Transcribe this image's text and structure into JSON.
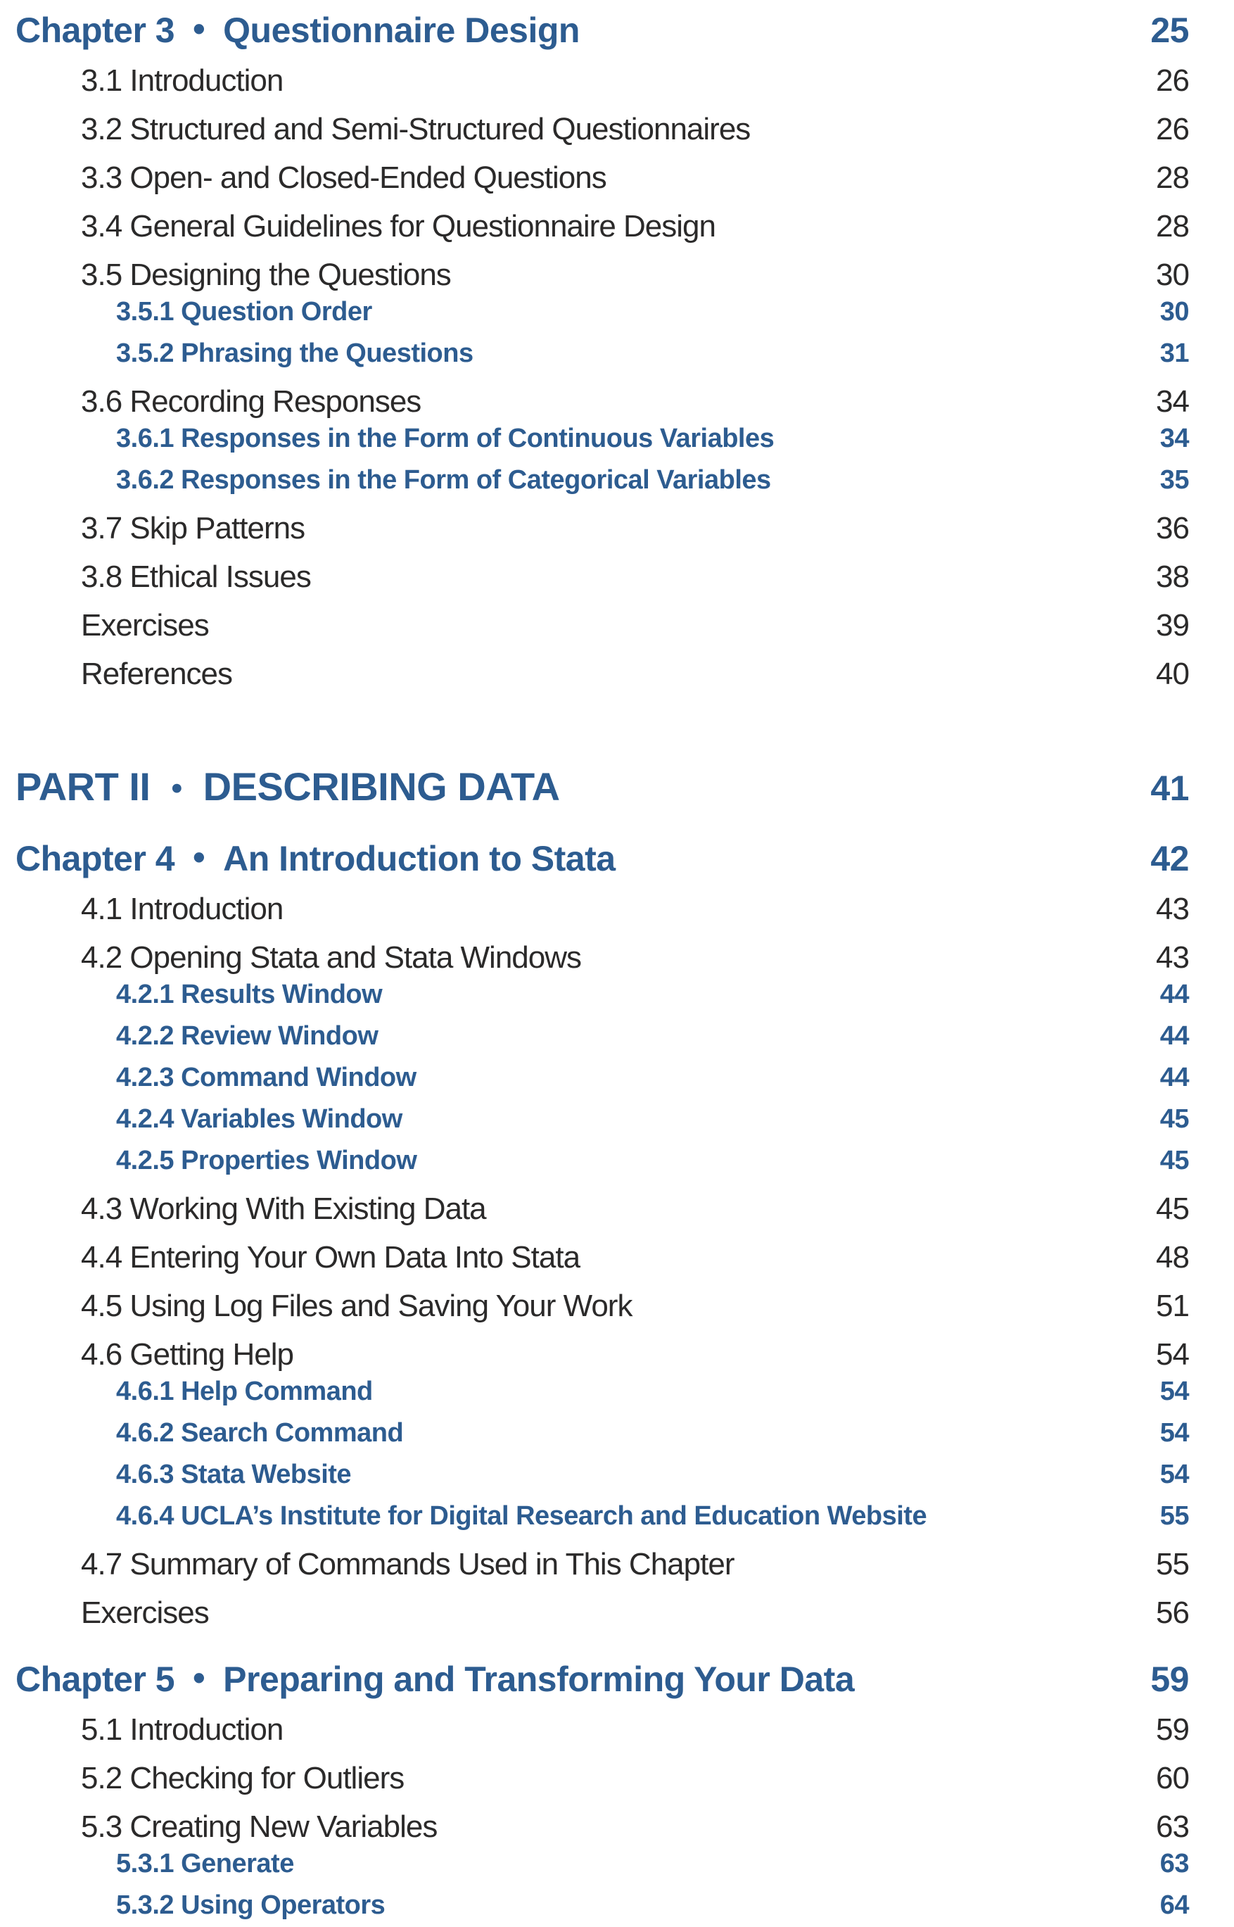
{
  "colors": {
    "accent_blue": "#2d5c90",
    "text_ink": "#2b2a2a",
    "background": "#ffffff"
  },
  "toc": {
    "bullet": "•",
    "entries": [
      {
        "level": "chapter",
        "prefix": "Chapter 3",
        "title": "Questionnaire Design",
        "page": "25"
      },
      {
        "level": "section",
        "title": "3.1 Introduction",
        "page": "26"
      },
      {
        "level": "section",
        "title": "3.2 Structured and Semi-Structured Questionnaires",
        "page": "26"
      },
      {
        "level": "section",
        "title": "3.3 Open- and Closed-Ended Questions",
        "page": "28"
      },
      {
        "level": "section",
        "title": "3.4 General Guidelines for Questionnaire Design",
        "page": "28"
      },
      {
        "level": "section",
        "title": "3.5 Designing the Questions",
        "page": "30"
      },
      {
        "level": "sub",
        "title": "3.5.1 Question Order",
        "page": "30"
      },
      {
        "level": "sub",
        "title": "3.5.2 Phrasing the Questions",
        "page": "31"
      },
      {
        "level": "section",
        "title": "3.6 Recording Responses",
        "page": "34"
      },
      {
        "level": "sub",
        "title": "3.6.1 Responses in the Form of Continuous Variables",
        "page": "34"
      },
      {
        "level": "sub",
        "title": "3.6.2 Responses in the Form of Categorical Variables",
        "page": "35"
      },
      {
        "level": "section",
        "title": "3.7 Skip Patterns",
        "page": "36"
      },
      {
        "level": "section",
        "title": "3.8 Ethical Issues",
        "page": "38"
      },
      {
        "level": "section",
        "title": "Exercises",
        "page": "39"
      },
      {
        "level": "section",
        "title": "References",
        "page": "40"
      },
      {
        "level": "part",
        "prefix": "PART II",
        "title": "DESCRIBING DATA",
        "page": "41"
      },
      {
        "level": "chapter",
        "prefix": "Chapter 4",
        "title": "An Introduction to Stata",
        "page": "42"
      },
      {
        "level": "section",
        "title": "4.1 Introduction",
        "page": "43"
      },
      {
        "level": "section",
        "title": "4.2 Opening Stata and Stata Windows",
        "page": "43"
      },
      {
        "level": "sub",
        "title": "4.2.1 Results Window",
        "page": "44"
      },
      {
        "level": "sub",
        "title": "4.2.2 Review Window",
        "page": "44"
      },
      {
        "level": "sub",
        "title": "4.2.3 Command Window",
        "page": "44"
      },
      {
        "level": "sub",
        "title": "4.2.4 Variables Window",
        "page": "45"
      },
      {
        "level": "sub",
        "title": "4.2.5 Properties Window",
        "page": "45"
      },
      {
        "level": "section",
        "title": "4.3 Working With Existing Data",
        "page": "45"
      },
      {
        "level": "section",
        "title": "4.4 Entering Your Own Data Into Stata",
        "page": "48"
      },
      {
        "level": "section",
        "title": "4.5 Using Log Files and Saving Your Work",
        "page": "51"
      },
      {
        "level": "section",
        "title": "4.6 Getting Help",
        "page": "54"
      },
      {
        "level": "sub",
        "title": "4.6.1 Help Command",
        "page": "54"
      },
      {
        "level": "sub",
        "title": "4.6.2 Search Command",
        "page": "54"
      },
      {
        "level": "sub",
        "title": "4.6.3 Stata Website",
        "page": "54"
      },
      {
        "level": "sub",
        "title": "4.6.4 UCLA’s Institute for Digital Research and Education Website",
        "page": "55"
      },
      {
        "level": "section",
        "title": "4.7 Summary of Commands Used in This Chapter",
        "page": "55"
      },
      {
        "level": "section",
        "title": "Exercises",
        "page": "56"
      },
      {
        "level": "chapter",
        "prefix": "Chapter 5",
        "title": "Preparing and Transforming Your Data",
        "page": "59"
      },
      {
        "level": "section",
        "title": "5.1 Introduction",
        "page": "59"
      },
      {
        "level": "section",
        "title": "5.2 Checking for Outliers",
        "page": "60"
      },
      {
        "level": "section",
        "title": "5.3 Creating New Variables",
        "page": "63"
      },
      {
        "level": "sub",
        "title": "5.3.1 Generate",
        "page": "63"
      },
      {
        "level": "sub",
        "title": "5.3.2 Using Operators",
        "page": "64"
      }
    ]
  }
}
